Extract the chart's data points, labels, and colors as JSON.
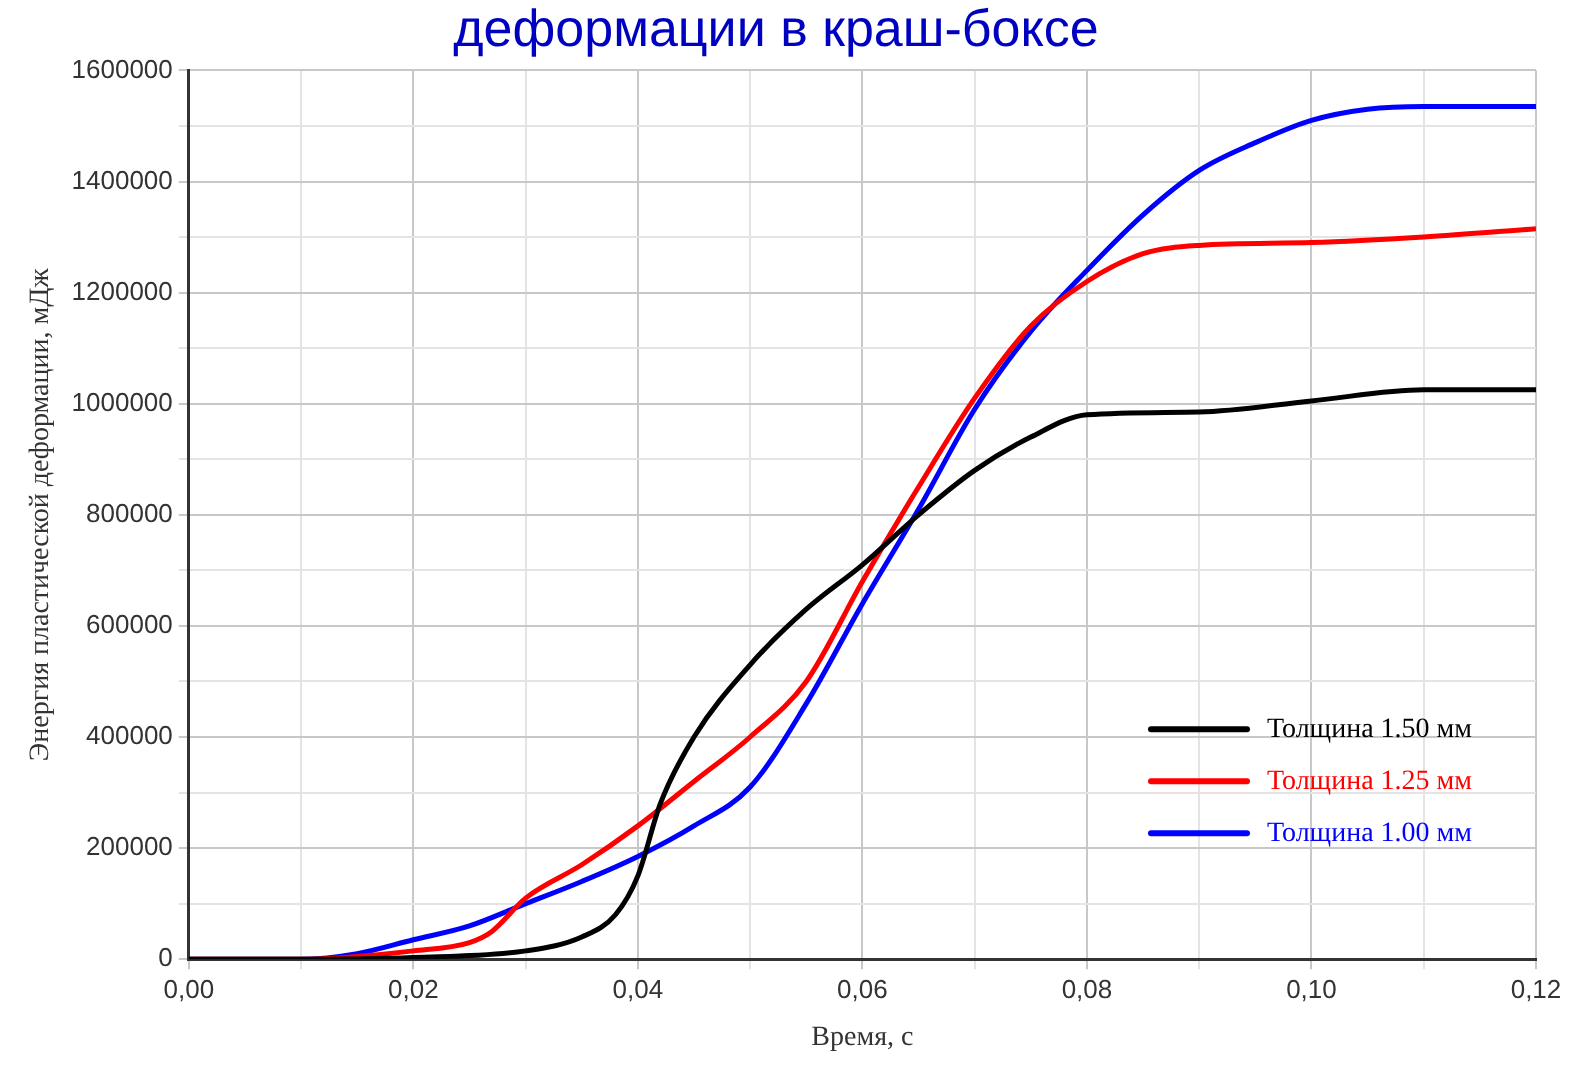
{
  "chart_data": {
    "type": "line",
    "title": "деформации в краш-боксе",
    "xlabel": "Время, с",
    "ylabel": "Энергия пластической деформации, мДж",
    "xlim": [
      0,
      0.12
    ],
    "ylim": [
      0,
      1600000
    ],
    "xticks": [
      {
        "value": 0,
        "label": "0,00"
      },
      {
        "value": 0.01,
        "label": null
      },
      {
        "value": 0.02,
        "label": "0,02"
      },
      {
        "value": 0.03,
        "label": null
      },
      {
        "value": 0.04,
        "label": "0,04"
      },
      {
        "value": 0.05,
        "label": null
      },
      {
        "value": 0.06,
        "label": "0,06"
      },
      {
        "value": 0.07,
        "label": null
      },
      {
        "value": 0.08,
        "label": "0,08"
      },
      {
        "value": 0.09,
        "label": null
      },
      {
        "value": 0.1,
        "label": "0,10"
      },
      {
        "value": 0.11,
        "label": null
      },
      {
        "value": 0.12,
        "label": "0,12"
      }
    ],
    "yticks": [
      0,
      {
        "value": 100000,
        "label": null
      },
      200000,
      {
        "value": 300000,
        "label": null
      },
      400000,
      {
        "value": 500000,
        "label": null
      },
      600000,
      {
        "value": 700000,
        "label": null
      },
      800000,
      {
        "value": 900000,
        "label": null
      },
      1000000,
      {
        "value": 1100000,
        "label": null
      },
      1200000,
      {
        "value": 1300000,
        "label": null
      },
      1400000,
      {
        "value": 1500000,
        "label": null
      },
      1600000
    ],
    "grid": true,
    "legend": "bottom right",
    "marker": "none",
    "line_style": "solid",
    "series": [
      {
        "name": "Толщина 1.50 мм",
        "color": "#000000",
        "x": [
          0,
          0.01,
          0.02,
          0.03,
          0.035,
          0.038,
          0.04,
          0.042,
          0.045,
          0.05,
          0.055,
          0.06,
          0.065,
          0.07,
          0.075,
          0.08,
          0.09,
          0.1,
          0.11,
          0.12
        ],
        "values": [
          0,
          0,
          3000,
          15000,
          40000,
          80000,
          150000,
          280000,
          400000,
          530000,
          630000,
          710000,
          800000,
          880000,
          940000,
          980000,
          985000,
          1005000,
          1025000,
          1025000
        ]
      },
      {
        "name": "Толщина 1.25 мм",
        "color": "#ff0000",
        "x": [
          0,
          0.01,
          0.02,
          0.025,
          0.027,
          0.03,
          0.035,
          0.04,
          0.045,
          0.05,
          0.055,
          0.06,
          0.065,
          0.07,
          0.075,
          0.08,
          0.085,
          0.09,
          0.1,
          0.11,
          0.12
        ],
        "values": [
          0,
          0,
          15000,
          30000,
          50000,
          110000,
          170000,
          240000,
          320000,
          400000,
          500000,
          680000,
          850000,
          1010000,
          1140000,
          1220000,
          1270000,
          1285000,
          1290000,
          1300000,
          1315000
        ]
      },
      {
        "name": "Толщина 1.00 мм",
        "color": "#0000ff",
        "x": [
          0,
          0.01,
          0.015,
          0.02,
          0.025,
          0.03,
          0.035,
          0.04,
          0.045,
          0.05,
          0.055,
          0.06,
          0.065,
          0.07,
          0.075,
          0.08,
          0.085,
          0.09,
          0.095,
          0.1,
          0.105,
          0.11,
          0.12
        ],
        "values": [
          0,
          0,
          10000,
          35000,
          60000,
          100000,
          140000,
          185000,
          240000,
          310000,
          460000,
          640000,
          810000,
          990000,
          1130000,
          1240000,
          1340000,
          1420000,
          1470000,
          1510000,
          1530000,
          1535000,
          1535000
        ]
      }
    ]
  }
}
